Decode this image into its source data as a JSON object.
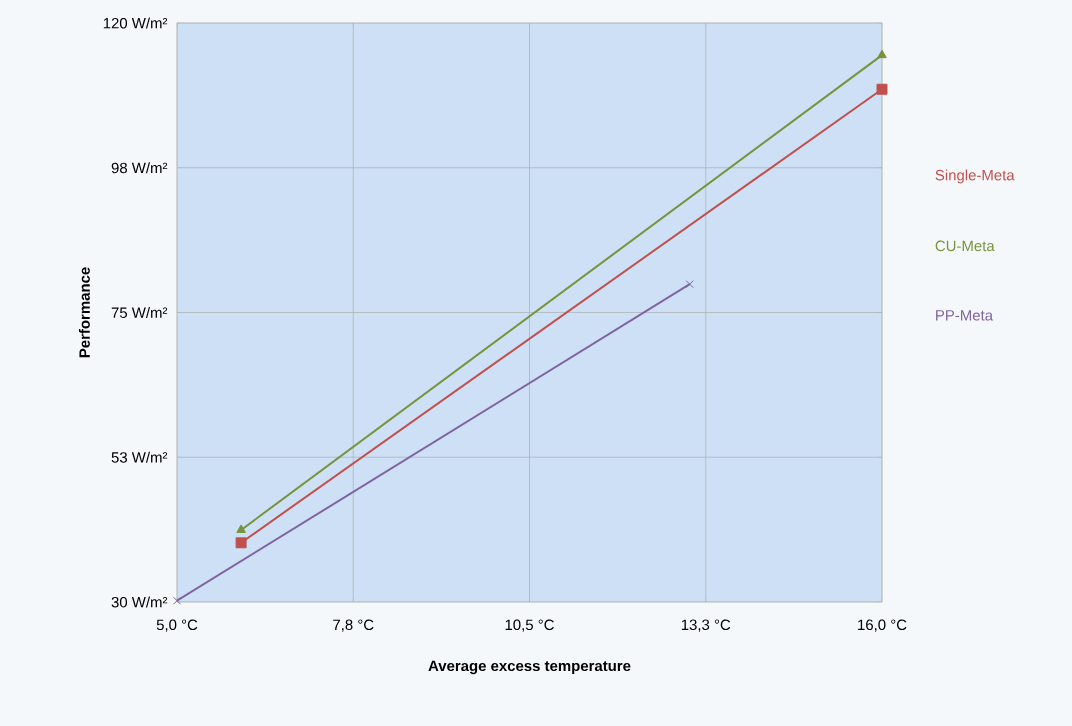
{
  "chart_data": {
    "type": "line",
    "xlabel": "Average excess temperature",
    "ylabel": "Performance",
    "xlim": [
      5,
      16
    ],
    "ylim": [
      30,
      120
    ],
    "xticks": [
      {
        "value": 5,
        "label": "5,0 °C"
      },
      {
        "value": 7.75,
        "label": "7,8 °C"
      },
      {
        "value": 10.5,
        "label": "10,5 °C"
      },
      {
        "value": 13.25,
        "label": "13,3 °C"
      },
      {
        "value": 16,
        "label": "16,0 °C"
      }
    ],
    "yticks": [
      {
        "value": 30,
        "label": "30 W/m²"
      },
      {
        "value": 52.5,
        "label": "53 W/m²"
      },
      {
        "value": 75,
        "label": "75 W/m²"
      },
      {
        "value": 97.5,
        "label": "98 W/m²"
      },
      {
        "value": 120,
        "label": "120 W/m²"
      }
    ],
    "grid": true,
    "legend": "right",
    "series": [
      {
        "name": "Single-Meta",
        "color": "#c0504d",
        "marker": "square",
        "x": [
          6,
          16
        ],
        "values": [
          39.2,
          109.7
        ]
      },
      {
        "name": "CU-Meta",
        "color": "#77933c",
        "marker": "triangle",
        "x": [
          6,
          16
        ],
        "values": [
          41.2,
          115
        ]
      },
      {
        "name": "PP-Meta",
        "color": "#8064a2",
        "marker": "cross",
        "x": [
          5,
          13
        ],
        "values": [
          30.2,
          79.4
        ]
      }
    ]
  }
}
